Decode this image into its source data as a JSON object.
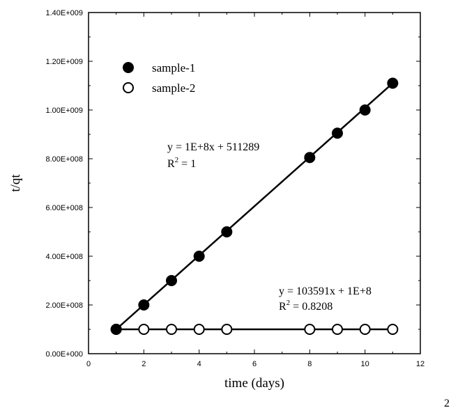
{
  "chart_data": {
    "type": "scatter",
    "xlabel": "time (days)",
    "ylabel": "t/qt",
    "xlim": [
      0,
      12
    ],
    "ylim": [
      0,
      1400000000
    ],
    "x_ticks": [
      {
        "value": 0,
        "label": "0"
      },
      {
        "value": 2,
        "label": "2"
      },
      {
        "value": 4,
        "label": "4"
      },
      {
        "value": 6,
        "label": "6"
      },
      {
        "value": 8,
        "label": "8"
      },
      {
        "value": 10,
        "label": "10"
      },
      {
        "value": 12,
        "label": "12"
      }
    ],
    "y_ticks": [
      {
        "value": 0,
        "label": "0.00E+000"
      },
      {
        "value": 200000000,
        "label": "2.00E+008"
      },
      {
        "value": 400000000,
        "label": "4.00E+008"
      },
      {
        "value": 600000000,
        "label": "6.00E+008"
      },
      {
        "value": 800000000,
        "label": "8.00E+008"
      },
      {
        "value": 1000000000,
        "label": "1.00E+009"
      },
      {
        "value": 1200000000,
        "label": "1.20E+009"
      },
      {
        "value": 1400000000,
        "label": "1.40E+009"
      }
    ],
    "legend_position": "top-left",
    "series": [
      {
        "name": "sample-1",
        "marker": "filled-circle",
        "x": [
          1,
          2,
          3,
          4,
          5,
          8,
          9,
          10,
          11
        ],
        "y": [
          100000000,
          200000000,
          300000000,
          400000000,
          500000000,
          805000000,
          905000000,
          1000000000,
          1110000000
        ],
        "fit": {
          "x": [
            1,
            11
          ],
          "y": [
            100000000,
            1110000000
          ]
        }
      },
      {
        "name": "sample-2",
        "marker": "open-circle",
        "x": [
          1,
          2,
          3,
          4,
          5,
          8,
          9,
          10,
          11
        ],
        "y": [
          100000000,
          100000000,
          100000000,
          100000000,
          100000000,
          100000000,
          100000000,
          100000000,
          100000000
        ],
        "fit": {
          "x": [
            1,
            11
          ],
          "y": [
            100000000,
            100000000
          ]
        }
      }
    ],
    "annotations": {
      "sample1_equation": "y = 1E+8x + 511289",
      "sample1_r2_prefix": "R",
      "sample1_r2_sup": "2",
      "sample1_r2_value": " = 1",
      "sample2_equation": "y = 103591x + 1E+8",
      "sample2_r2_prefix": "R",
      "sample2_r2_sup": "2",
      "sample2_r2_value": " = 0.8208"
    },
    "corner_label": "2"
  }
}
